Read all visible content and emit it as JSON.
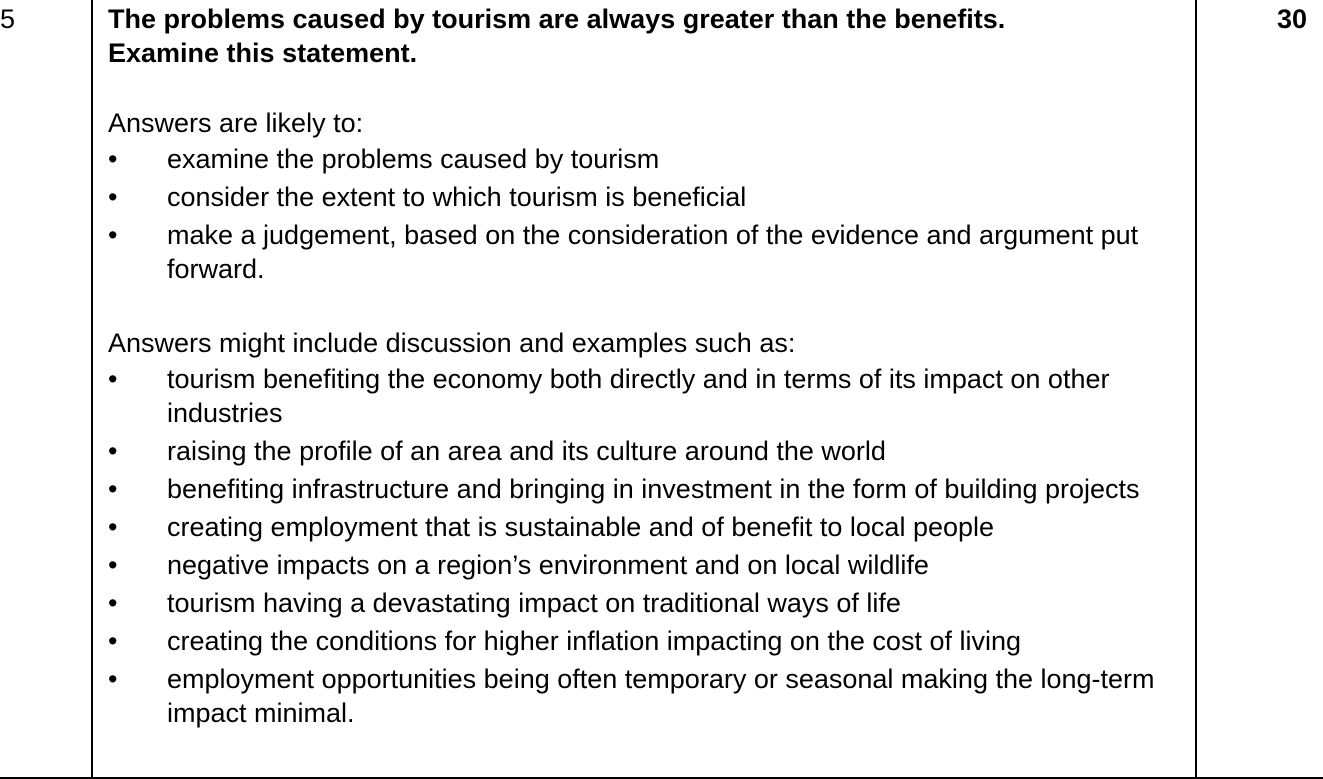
{
  "question_number": "5",
  "marks": "30",
  "question": {
    "line1": "The problems caused by tourism are always greater than the benefits.",
    "line2": "Examine this statement."
  },
  "likely": {
    "intro": "Answers are likely to:",
    "items": [
      "examine the problems caused by tourism",
      "consider the extent to which tourism is beneficial",
      "make a judgement, based on the consideration of the evidence and argument put forward."
    ]
  },
  "might": {
    "intro": "Answers might include discussion and examples such as:",
    "items": [
      "tourism benefiting the economy both directly and in terms of its impact on other industries",
      "raising the profile of an area and its culture around the world",
      "benefiting infrastructure and bringing in investment in the form of building projects",
      "creating employment that is sustainable and of benefit to local people",
      "negative impacts on a region’s environment and on local wildlife",
      "tourism having a devastating impact on traditional ways of life",
      "creating the conditions for higher inflation impacting on the cost of living",
      "employment opportunities being often temporary or seasonal making the long-term impact minimal."
    ]
  }
}
